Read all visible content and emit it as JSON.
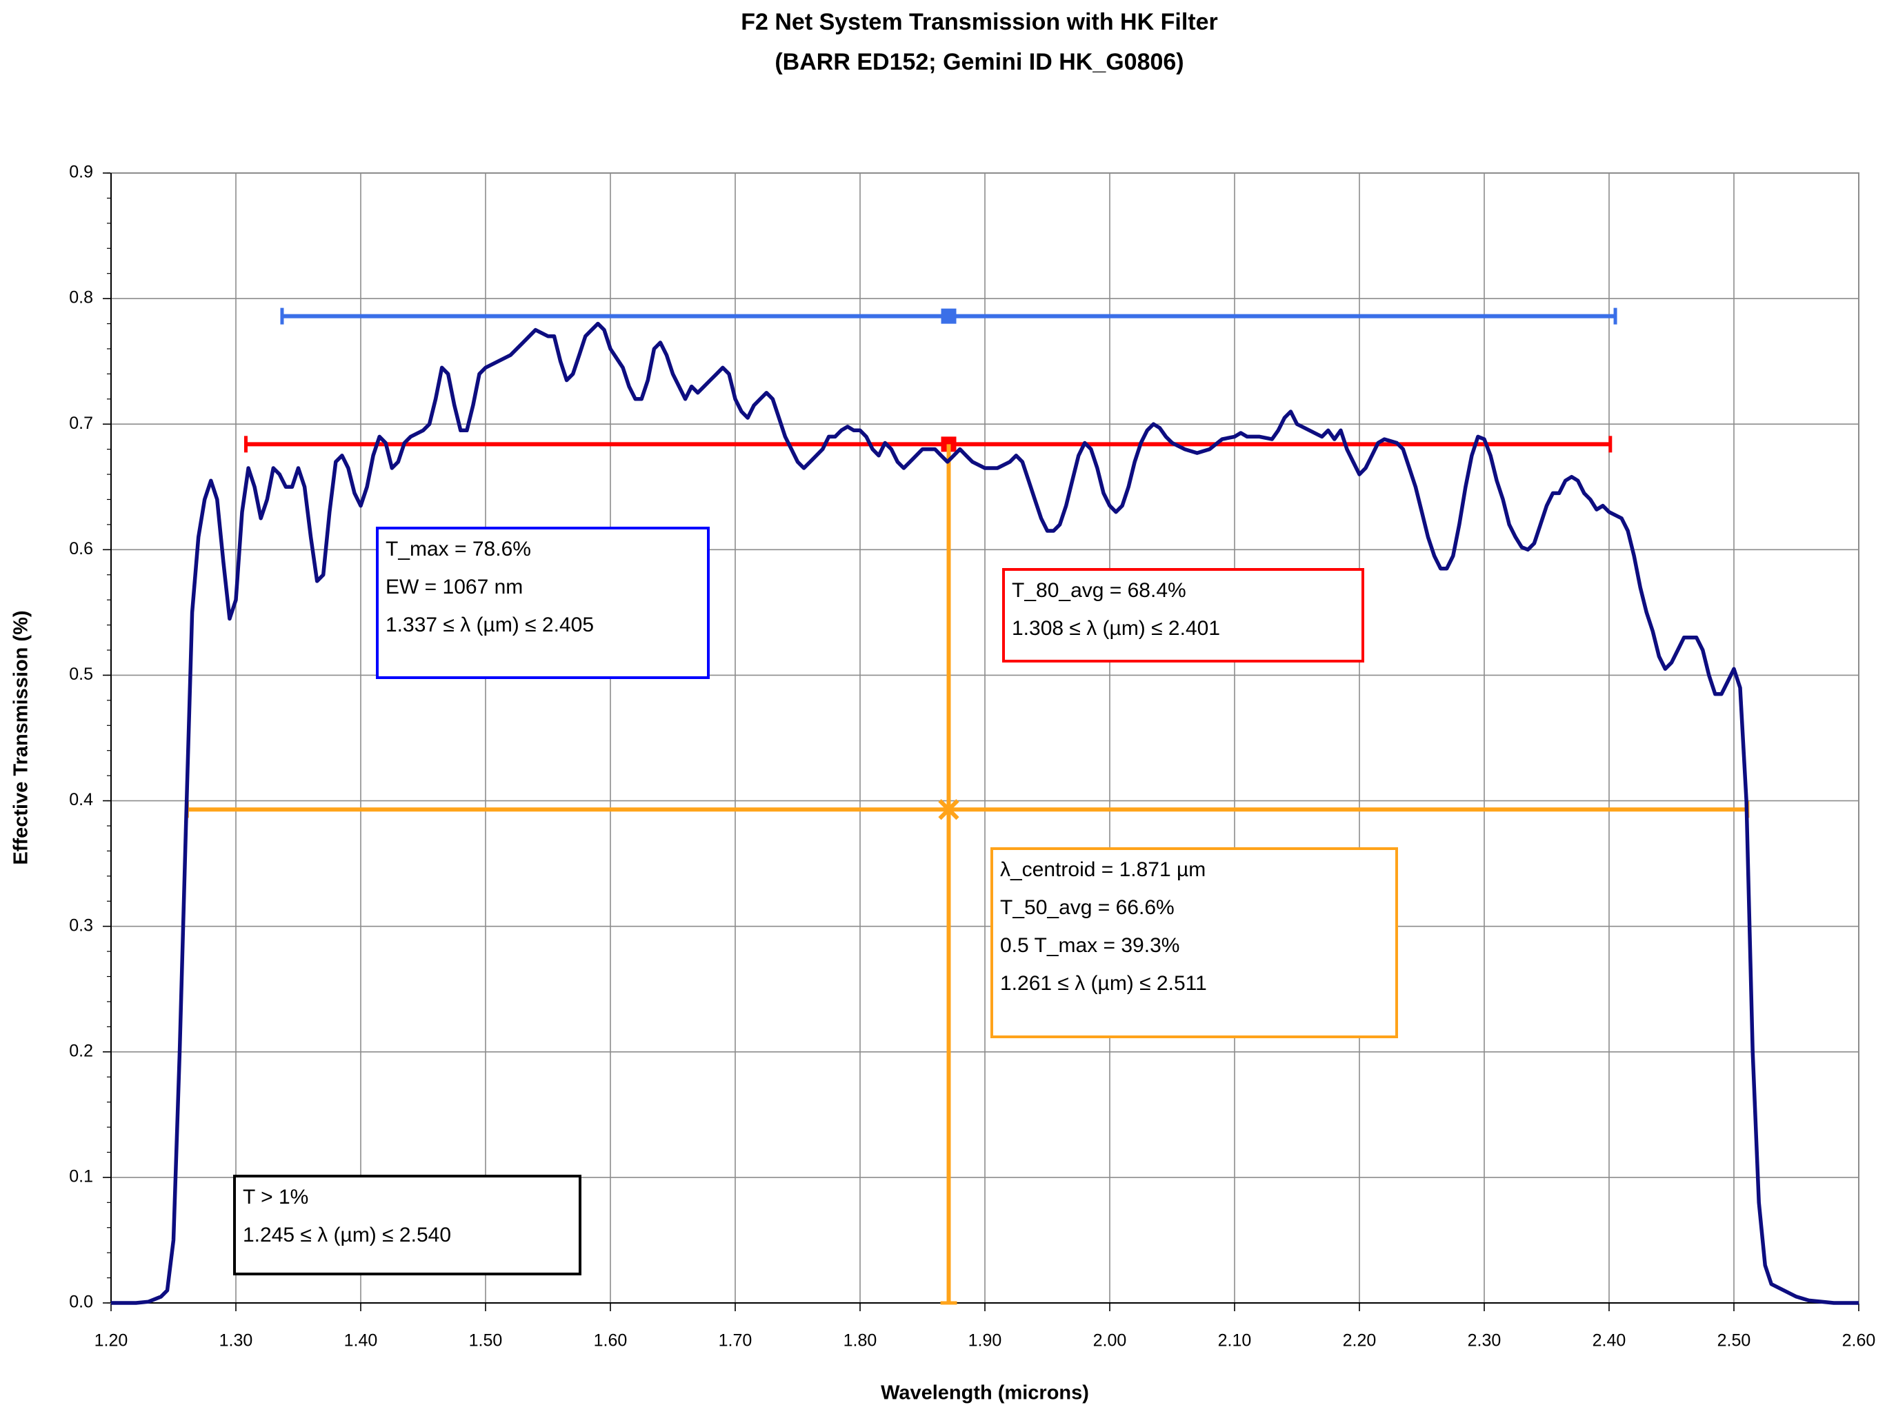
{
  "chart_data": {
    "type": "line",
    "title": "F2 Net System Transmission with HK Filter",
    "subtitle": "(BARR ED152; Gemini ID HK_G0806)",
    "x_label": "Wavelength (microns)",
    "y_label": "Effective Transmission (%)",
    "color": "#0d0d80",
    "grid": true,
    "xlim": [
      1.2,
      2.6
    ],
    "ylim": [
      0,
      0.9
    ],
    "xticks": [
      {
        "value": 1.2,
        "label": "1.20"
      },
      {
        "value": 1.3,
        "label": "1.30"
      },
      {
        "value": 1.4,
        "label": "1.40"
      },
      {
        "value": 1.5,
        "label": "1.50"
      },
      {
        "value": 1.6,
        "label": "1.60"
      },
      {
        "value": 1.7,
        "label": "1.70"
      },
      {
        "value": 1.8,
        "label": "1.80"
      },
      {
        "value": 1.9,
        "label": "1.90"
      },
      {
        "value": 2.0,
        "label": "2.00"
      },
      {
        "value": 2.1,
        "label": "2.10"
      },
      {
        "value": 2.2,
        "label": "2.20"
      },
      {
        "value": 2.3,
        "label": "2.30"
      },
      {
        "value": 2.4,
        "label": "2.40"
      },
      {
        "value": 2.5,
        "label": "2.50"
      },
      {
        "value": 2.6,
        "label": "2.60"
      }
    ],
    "yticks": [
      {
        "value": 0,
        "label": "0.0"
      },
      0.1,
      0.2,
      0.3,
      0.4,
      0.5,
      0.6,
      0.7,
      0.8,
      0.9
    ],
    "x": [
      1.2,
      1.22,
      1.23,
      1.24,
      1.245,
      1.25,
      1.255,
      1.26,
      1.265,
      1.27,
      1.275,
      1.28,
      1.285,
      1.29,
      1.295,
      1.3,
      1.305,
      1.31,
      1.315,
      1.32,
      1.325,
      1.33,
      1.335,
      1.34,
      1.345,
      1.35,
      1.355,
      1.36,
      1.365,
      1.37,
      1.375,
      1.38,
      1.385,
      1.39,
      1.395,
      1.4,
      1.405,
      1.41,
      1.415,
      1.42,
      1.425,
      1.43,
      1.435,
      1.44,
      1.45,
      1.455,
      1.46,
      1.465,
      1.47,
      1.475,
      1.48,
      1.485,
      1.49,
      1.495,
      1.5,
      1.51,
      1.52,
      1.53,
      1.54,
      1.55,
      1.555,
      1.56,
      1.565,
      1.57,
      1.575,
      1.58,
      1.585,
      1.59,
      1.595,
      1.6,
      1.61,
      1.615,
      1.62,
      1.625,
      1.63,
      1.635,
      1.64,
      1.645,
      1.65,
      1.655,
      1.66,
      1.665,
      1.67,
      1.675,
      1.68,
      1.685,
      1.69,
      1.695,
      1.7,
      1.705,
      1.71,
      1.715,
      1.72,
      1.725,
      1.73,
      1.735,
      1.74,
      1.745,
      1.75,
      1.755,
      1.76,
      1.765,
      1.77,
      1.775,
      1.78,
      1.785,
      1.79,
      1.795,
      1.8,
      1.805,
      1.81,
      1.815,
      1.82,
      1.825,
      1.83,
      1.835,
      1.84,
      1.845,
      1.85,
      1.86,
      1.865,
      1.87,
      1.875,
      1.88,
      1.885,
      1.89,
      1.9,
      1.91,
      1.92,
      1.925,
      1.93,
      1.935,
      1.94,
      1.945,
      1.95,
      1.955,
      1.96,
      1.965,
      1.97,
      1.975,
      1.98,
      1.985,
      1.99,
      1.995,
      2.0,
      2.005,
      2.01,
      2.015,
      2.02,
      2.025,
      2.03,
      2.035,
      2.04,
      2.045,
      2.05,
      2.06,
      2.07,
      2.08,
      2.09,
      2.1,
      2.105,
      2.11,
      2.12,
      2.13,
      2.135,
      2.14,
      2.145,
      2.15,
      2.16,
      2.17,
      2.175,
      2.18,
      2.185,
      2.19,
      2.195,
      2.2,
      2.205,
      2.21,
      2.215,
      2.22,
      2.23,
      2.235,
      2.24,
      2.245,
      2.25,
      2.255,
      2.26,
      2.265,
      2.27,
      2.275,
      2.28,
      2.285,
      2.29,
      2.295,
      2.3,
      2.305,
      2.31,
      2.315,
      2.32,
      2.325,
      2.33,
      2.335,
      2.34,
      2.345,
      2.35,
      2.355,
      2.36,
      2.365,
      2.37,
      2.375,
      2.38,
      2.385,
      2.39,
      2.395,
      2.4,
      2.41,
      2.415,
      2.42,
      2.425,
      2.43,
      2.435,
      2.44,
      2.445,
      2.45,
      2.455,
      2.46,
      2.465,
      2.47,
      2.475,
      2.48,
      2.485,
      2.49,
      2.495,
      2.5,
      2.505,
      2.51,
      2.515,
      2.52,
      2.525,
      2.53,
      2.54,
      2.55,
      2.56,
      2.58,
      2.6
    ],
    "values": [
      0,
      0,
      0.001,
      0.005,
      0.01,
      0.05,
      0.2,
      0.38,
      0.55,
      0.61,
      0.64,
      0.655,
      0.64,
      0.59,
      0.545,
      0.56,
      0.63,
      0.665,
      0.65,
      0.625,
      0.64,
      0.665,
      0.66,
      0.65,
      0.65,
      0.665,
      0.65,
      0.61,
      0.575,
      0.58,
      0.63,
      0.67,
      0.675,
      0.665,
      0.645,
      0.635,
      0.65,
      0.675,
      0.69,
      0.685,
      0.665,
      0.67,
      0.685,
      0.69,
      0.695,
      0.7,
      0.72,
      0.745,
      0.74,
      0.715,
      0.695,
      0.695,
      0.715,
      0.74,
      0.745,
      0.75,
      0.755,
      0.765,
      0.775,
      0.77,
      0.77,
      0.75,
      0.735,
      0.74,
      0.755,
      0.77,
      0.775,
      0.78,
      0.775,
      0.76,
      0.745,
      0.73,
      0.72,
      0.72,
      0.735,
      0.76,
      0.765,
      0.755,
      0.74,
      0.73,
      0.72,
      0.73,
      0.725,
      0.73,
      0.735,
      0.74,
      0.745,
      0.74,
      0.72,
      0.71,
      0.705,
      0.715,
      0.72,
      0.725,
      0.72,
      0.705,
      0.69,
      0.68,
      0.67,
      0.665,
      0.67,
      0.675,
      0.68,
      0.69,
      0.69,
      0.695,
      0.698,
      0.695,
      0.695,
      0.69,
      0.68,
      0.675,
      0.685,
      0.68,
      0.67,
      0.665,
      0.67,
      0.675,
      0.68,
      0.68,
      0.675,
      0.67,
      0.675,
      0.68,
      0.675,
      0.67,
      0.665,
      0.665,
      0.67,
      0.675,
      0.67,
      0.655,
      0.64,
      0.625,
      0.615,
      0.615,
      0.62,
      0.635,
      0.655,
      0.675,
      0.685,
      0.68,
      0.665,
      0.645,
      0.635,
      0.63,
      0.635,
      0.65,
      0.67,
      0.685,
      0.695,
      0.7,
      0.697,
      0.69,
      0.685,
      0.68,
      0.677,
      0.68,
      0.688,
      0.69,
      0.693,
      0.69,
      0.69,
      0.688,
      0.695,
      0.705,
      0.71,
      0.7,
      0.695,
      0.69,
      0.695,
      0.688,
      0.695,
      0.68,
      0.67,
      0.66,
      0.665,
      0.675,
      0.685,
      0.688,
      0.685,
      0.68,
      0.665,
      0.65,
      0.63,
      0.61,
      0.595,
      0.585,
      0.585,
      0.595,
      0.62,
      0.65,
      0.675,
      0.69,
      0.688,
      0.675,
      0.655,
      0.64,
      0.62,
      0.61,
      0.602,
      0.6,
      0.605,
      0.62,
      0.635,
      0.645,
      0.645,
      0.655,
      0.658,
      0.655,
      0.645,
      0.64,
      0.632,
      0.635,
      0.63,
      0.625,
      0.615,
      0.595,
      0.57,
      0.55,
      0.535,
      0.515,
      0.505,
      0.51,
      0.52,
      0.53,
      0.53,
      0.53,
      0.52,
      0.5,
      0.485,
      0.485,
      0.495,
      0.505,
      0.49,
      0.4,
      0.2,
      0.08,
      0.03,
      0.015,
      0.01,
      0.005,
      0.002,
      0,
      0
    ],
    "ranges": [
      {
        "color": "#3a6fe8",
        "y": 0.786,
        "x0": 1.337,
        "x1": 2.405,
        "center": 1.871
      },
      {
        "color": "#ff0000",
        "y": 0.684,
        "x0": 1.308,
        "x1": 2.401,
        "center": 1.871
      },
      {
        "color": "#ffa31a",
        "y": 0.393,
        "x0": 1.261,
        "x1": 2.511,
        "center": 1.871
      }
    ],
    "centroid_line": {
      "color": "#ffa31a",
      "x": 1.871,
      "y0": 0,
      "y1": 0.684
    },
    "boxes": [
      {
        "color": "#0000ff",
        "lines": [
          "T_max = 78.6%",
          "EW = 1067 nm",
          "1.337 ≤ λ (µm) ≤ 2.405"
        ]
      },
      {
        "color": "#ff0000",
        "lines": [
          "T_80_avg = 68.4%",
          "1.308 ≤ λ (µm) ≤ 2.401"
        ]
      },
      {
        "color": "#ffa31a",
        "lines": [
          "λ_centroid = 1.871 µm",
          "T_50_avg = 66.6%",
          "0.5 T_max = 39.3%",
          "1.261 ≤ λ (µm) ≤ 2.511"
        ]
      },
      {
        "color": "#000000",
        "lines": [
          "T > 1%",
          "1.245 ≤ λ (µm) ≤ 2.540"
        ]
      }
    ]
  }
}
